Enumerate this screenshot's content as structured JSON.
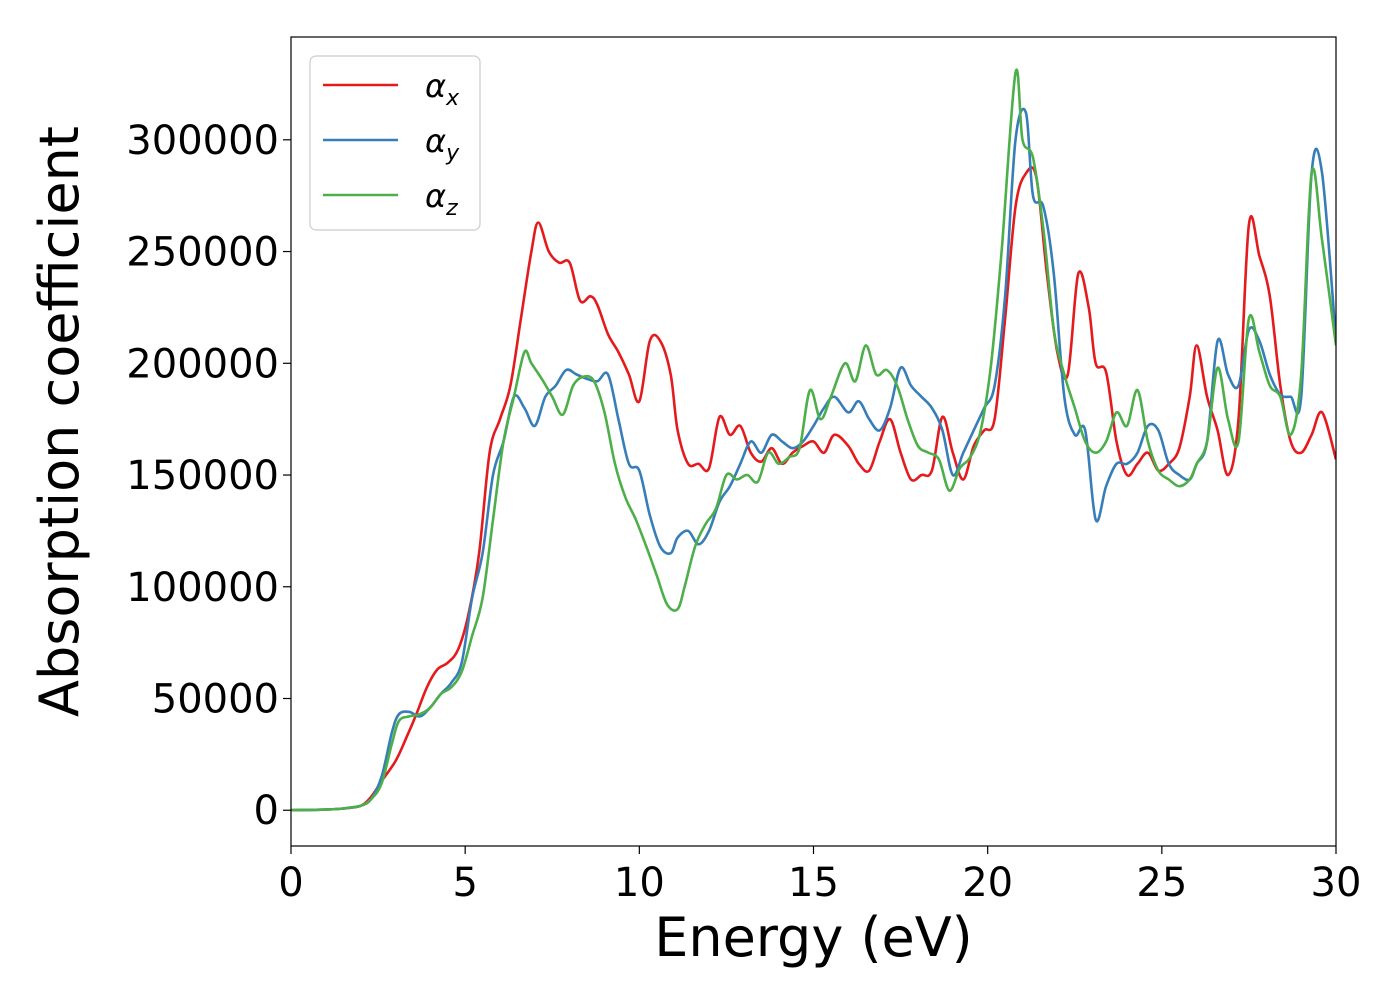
{
  "chart_data": {
    "type": "line",
    "xlabel": "Energy (eV)",
    "ylabel": "Absorption coefficient",
    "xlim": [
      0,
      30
    ],
    "ylim": [
      -16000,
      346000
    ],
    "xticks": [
      0,
      5,
      10,
      15,
      20,
      25,
      30
    ],
    "xtick_labels": [
      "0",
      "5",
      "10",
      "15",
      "20",
      "25",
      "30"
    ],
    "yticks": [
      0,
      50000,
      100000,
      150000,
      200000,
      250000,
      300000
    ],
    "ytick_labels": [
      "0",
      "50000",
      "100000",
      "150000",
      "200000",
      "250000",
      "300000"
    ],
    "grid": false,
    "legend_position": "top-left",
    "series": [
      {
        "name": "α",
        "subscript": "x",
        "color": "#e41a1c",
        "x": [
          0,
          1,
          1.5,
          2,
          2.3,
          2.6,
          3.0,
          3.3,
          3.6,
          3.9,
          4.2,
          4.5,
          4.8,
          5.1,
          5.4,
          5.7,
          6.0,
          6.3,
          6.6,
          6.9,
          7.1,
          7.4,
          7.7,
          8.0,
          8.3,
          8.6,
          8.8,
          9.1,
          9.4,
          9.7,
          10.0,
          10.3,
          10.6,
          10.9,
          11.1,
          11.4,
          11.7,
          12.0,
          12.3,
          12.6,
          12.9,
          13.2,
          13.5,
          13.8,
          14.1,
          14.4,
          14.7,
          15.0,
          15.3,
          15.6,
          16.0,
          16.3,
          16.6,
          16.9,
          17.2,
          17.5,
          17.8,
          18.1,
          18.4,
          18.7,
          19.0,
          19.3,
          19.6,
          19.9,
          20.2,
          20.5,
          20.8,
          21.1,
          21.4,
          21.7,
          22.0,
          22.3,
          22.6,
          22.9,
          23.1,
          23.4,
          23.7,
          24.0,
          24.3,
          24.6,
          24.9,
          25.2,
          25.5,
          25.8,
          26.0,
          26.3,
          26.6,
          26.9,
          27.2,
          27.5,
          27.8,
          28.1,
          28.4,
          28.7,
          29.0,
          29.3,
          29.6,
          30.0
        ],
        "y": [
          0,
          300,
          800,
          2000,
          6000,
          13000,
          22000,
          32000,
          43000,
          55000,
          63000,
          66000,
          72000,
          88000,
          115000,
          160000,
          175000,
          190000,
          220000,
          250000,
          263000,
          250000,
          245000,
          245000,
          228000,
          230000,
          226000,
          213000,
          205000,
          195000,
          183000,
          210000,
          210000,
          195000,
          170000,
          155000,
          155000,
          153000,
          176000,
          168000,
          172000,
          160000,
          156000,
          162000,
          155000,
          160000,
          163000,
          165000,
          160000,
          168000,
          163000,
          155000,
          152000,
          165000,
          175000,
          160000,
          148000,
          150000,
          152000,
          176000,
          160000,
          148000,
          163000,
          170000,
          175000,
          220000,
          270000,
          285000,
          283000,
          240000,
          205000,
          195000,
          240000,
          225000,
          200000,
          196000,
          165000,
          150000,
          155000,
          160000,
          152000,
          155000,
          162000,
          185000,
          208000,
          185000,
          170000,
          150000,
          175000,
          262000,
          248000,
          230000,
          190000,
          165000,
          160000,
          168000,
          178000,
          157000
        ]
      },
      {
        "name": "α",
        "subscript": "y",
        "color": "#377eb8",
        "x": [
          0,
          1,
          1.5,
          2,
          2.3,
          2.6,
          2.9,
          3.1,
          3.4,
          3.7,
          4.0,
          4.3,
          4.6,
          4.9,
          5.2,
          5.5,
          5.8,
          6.1,
          6.4,
          6.7,
          7.0,
          7.3,
          7.6,
          7.9,
          8.2,
          8.5,
          8.8,
          9.1,
          9.4,
          9.7,
          10.0,
          10.3,
          10.6,
          10.9,
          11.1,
          11.4,
          11.7,
          12.0,
          12.3,
          12.6,
          12.9,
          13.2,
          13.5,
          13.8,
          14.1,
          14.4,
          14.7,
          15.0,
          15.3,
          15.6,
          16.0,
          16.3,
          16.6,
          16.9,
          17.2,
          17.5,
          17.8,
          18.1,
          18.4,
          18.7,
          19.0,
          19.3,
          19.6,
          19.9,
          20.2,
          20.5,
          20.8,
          21.1,
          21.3,
          21.6,
          21.9,
          22.2,
          22.5,
          22.8,
          23.1,
          23.4,
          23.7,
          24.0,
          24.3,
          24.6,
          24.9,
          25.2,
          25.5,
          25.8,
          26.0,
          26.3,
          26.6,
          26.9,
          27.2,
          27.5,
          27.8,
          28.1,
          28.4,
          28.7,
          29.0,
          29.3,
          29.6,
          30.0
        ],
        "y": [
          0,
          300,
          800,
          2000,
          5000,
          15000,
          35000,
          43000,
          44000,
          42000,
          46000,
          52000,
          57000,
          66000,
          95000,
          115000,
          150000,
          165000,
          185000,
          180000,
          172000,
          185000,
          190000,
          197000,
          195000,
          193000,
          192000,
          195000,
          175000,
          155000,
          152000,
          132000,
          118000,
          115000,
          122000,
          125000,
          119000,
          125000,
          138000,
          145000,
          155000,
          165000,
          160000,
          168000,
          165000,
          162000,
          165000,
          172000,
          180000,
          185000,
          178000,
          183000,
          175000,
          170000,
          180000,
          198000,
          190000,
          185000,
          180000,
          170000,
          150000,
          160000,
          170000,
          180000,
          190000,
          230000,
          300000,
          312000,
          275000,
          270000,
          240000,
          185000,
          168000,
          170000,
          130000,
          145000,
          155000,
          155000,
          160000,
          172000,
          170000,
          155000,
          150000,
          148000,
          155000,
          165000,
          210000,
          195000,
          190000,
          215000,
          210000,
          195000,
          186000,
          185000,
          185000,
          285000,
          285000,
          210000
        ]
      },
      {
        "name": "α",
        "subscript": "z",
        "color": "#4daf4a",
        "x": [
          0,
          1,
          1.5,
          2,
          2.3,
          2.6,
          2.9,
          3.1,
          3.4,
          3.7,
          4.0,
          4.3,
          4.6,
          4.9,
          5.2,
          5.5,
          5.8,
          6.1,
          6.4,
          6.7,
          6.9,
          7.2,
          7.5,
          7.8,
          8.1,
          8.4,
          8.7,
          9.0,
          9.3,
          9.6,
          9.9,
          10.2,
          10.5,
          10.8,
          11.1,
          11.3,
          11.6,
          11.9,
          12.2,
          12.5,
          12.8,
          13.1,
          13.4,
          13.7,
          14.0,
          14.3,
          14.6,
          14.9,
          15.2,
          15.5,
          15.9,
          16.2,
          16.5,
          16.8,
          17.1,
          17.4,
          17.7,
          18.0,
          18.3,
          18.6,
          18.9,
          19.2,
          19.5,
          19.8,
          20.1,
          20.4,
          20.8,
          21.0,
          21.3,
          21.6,
          21.9,
          22.2,
          22.5,
          22.8,
          23.1,
          23.4,
          23.7,
          24.0,
          24.3,
          24.6,
          24.9,
          25.2,
          25.5,
          25.8,
          26.0,
          26.3,
          26.6,
          26.9,
          27.2,
          27.5,
          27.8,
          28.1,
          28.4,
          28.7,
          29.0,
          29.3,
          29.6,
          30.0
        ],
        "y": [
          0,
          300,
          800,
          2000,
          5000,
          12000,
          30000,
          40000,
          42000,
          43000,
          46000,
          52000,
          55000,
          62000,
          78000,
          95000,
          130000,
          165000,
          185000,
          205000,
          200000,
          193000,
          185000,
          177000,
          190000,
          194000,
          192000,
          178000,
          155000,
          140000,
          130000,
          118000,
          105000,
          92000,
          90000,
          100000,
          118000,
          128000,
          135000,
          150000,
          148000,
          150000,
          147000,
          160000,
          155000,
          158000,
          162000,
          188000,
          175000,
          185000,
          200000,
          192000,
          208000,
          195000,
          197000,
          190000,
          175000,
          163000,
          160000,
          157000,
          143000,
          153000,
          158000,
          170000,
          200000,
          250000,
          330000,
          300000,
          292000,
          260000,
          215000,
          195000,
          180000,
          165000,
          160000,
          165000,
          178000,
          172000,
          188000,
          165000,
          152000,
          148000,
          145000,
          148000,
          155000,
          165000,
          198000,
          175000,
          165000,
          220000,
          205000,
          190000,
          185000,
          168000,
          195000,
          285000,
          255000,
          208000
        ]
      }
    ]
  }
}
